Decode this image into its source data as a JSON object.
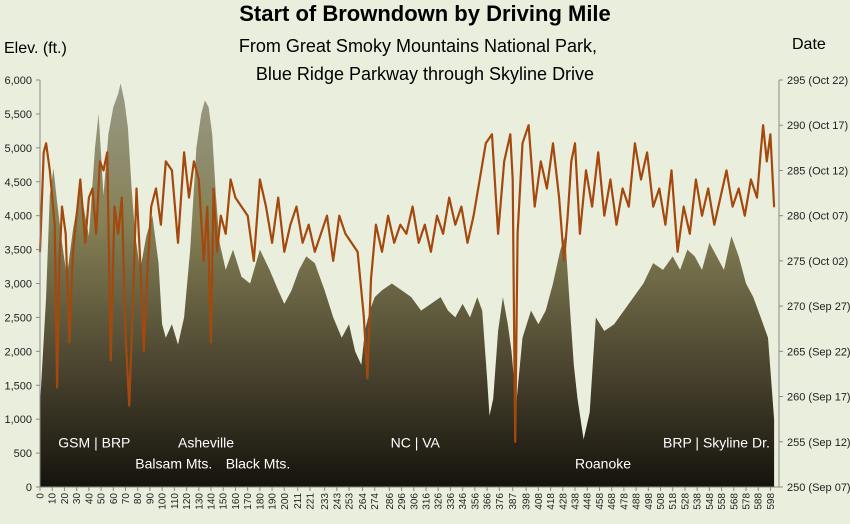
{
  "chart_data": {
    "type": "area",
    "title": "Start of Browndown by Driving Mile",
    "subtitle_lines": [
      "From Great Smoky Mountains National Park,",
      "Blue Ridge Parkway through Skyline Drive"
    ],
    "ylabel": "Elev. (ft.)",
    "y2label": "Date",
    "ylim": [
      0,
      6000
    ],
    "yticks": [
      0,
      500,
      1000,
      1500,
      2000,
      2500,
      3000,
      3500,
      4000,
      4500,
      5000,
      5500,
      6000
    ],
    "yticklabels": [
      "0",
      "500",
      "1,000",
      "1,500",
      "2,000",
      "2,500",
      "3,000",
      "3,500",
      "4,000",
      "4,500",
      "5,000",
      "5,500",
      "6,000"
    ],
    "y2lim": [
      250,
      295
    ],
    "y2ticks": [
      250,
      255,
      260,
      265,
      270,
      275,
      280,
      285,
      290,
      295
    ],
    "y2ticklabels": [
      "250 (Sep 07)",
      "255 (Sep 12)",
      "260 (Sep 17)",
      "265 (Sep 22)",
      "270 (Sep 27)",
      "275 (Oct 02)",
      "280 (Oct 07)",
      "285 (Oct 12)",
      "290 (Oct 17)",
      "295 (Oct 22)"
    ],
    "xlim": [
      0,
      605
    ],
    "xticks": [
      0,
      10,
      20,
      30,
      40,
      50,
      60,
      70,
      80,
      90,
      100,
      110,
      120,
      130,
      140,
      150,
      160,
      170,
      180,
      190,
      200,
      211,
      221,
      233,
      243,
      253,
      264,
      274,
      286,
      296,
      306,
      316,
      326,
      336,
      346,
      356,
      366,
      376,
      387,
      398,
      408,
      418,
      428,
      438,
      448,
      458,
      468,
      478,
      488,
      498,
      508,
      518,
      528,
      538,
      548,
      558,
      568,
      578,
      588,
      598
    ],
    "grid": false,
    "legend": "none",
    "series": [
      {
        "kind": "area",
        "axis": "left",
        "x": [
          0,
          5,
          8,
          11,
          14,
          18,
          22,
          27,
          33,
          40,
          45,
          48,
          52,
          56,
          60,
          64,
          66,
          69,
          72,
          75,
          78,
          82,
          87,
          92,
          97,
          100,
          103,
          108,
          113,
          118,
          123,
          128,
          132,
          135,
          138,
          141,
          144,
          147,
          152,
          158,
          165,
          172,
          180,
          188,
          195,
          200,
          206,
          212,
          218,
          225,
          233,
          240,
          247,
          253,
          258,
          263,
          266,
          270,
          274,
          280,
          288,
          296,
          304,
          312,
          320,
          328,
          334,
          340,
          346,
          352,
          358,
          362,
          366,
          368,
          371,
          375,
          379,
          383,
          386,
          388,
          390,
          395,
          402,
          408,
          414,
          420,
          426,
          430,
          434,
          437,
          440,
          445,
          450,
          455,
          462,
          470,
          478,
          486,
          494,
          502,
          510,
          518,
          524,
          530,
          536,
          542,
          548,
          554,
          560,
          566,
          572,
          578,
          584,
          590,
          596,
          601
        ],
        "values": [
          1200,
          2800,
          4300,
          4700,
          4200,
          3600,
          3100,
          3800,
          4400,
          3700,
          5000,
          5500,
          4300,
          5200,
          5600,
          5800,
          5950,
          5700,
          5300,
          4400,
          3700,
          3200,
          3700,
          4000,
          3300,
          2400,
          2200,
          2400,
          2100,
          2500,
          3500,
          5000,
          5500,
          5700,
          5600,
          5200,
          4300,
          3600,
          3200,
          3500,
          3100,
          3000,
          3500,
          3200,
          2900,
          2700,
          2900,
          3200,
          3400,
          3300,
          2900,
          2500,
          2200,
          2400,
          2000,
          1800,
          2300,
          2600,
          2800,
          2900,
          3000,
          2900,
          2800,
          2600,
          2700,
          2800,
          2600,
          2500,
          2700,
          2500,
          2800,
          2600,
          1600,
          1050,
          1300,
          2300,
          2800,
          2400,
          2000,
          1600,
          1250,
          2200,
          2600,
          2400,
          2600,
          3000,
          3500,
          3700,
          2600,
          1800,
          1300,
          700,
          1100,
          2500,
          2300,
          2400,
          2600,
          2800,
          3000,
          3300,
          3200,
          3400,
          3200,
          3500,
          3400,
          3200,
          3600,
          3400,
          3200,
          3700,
          3400,
          3000,
          2800,
          2500,
          2200,
          1000
        ]
      },
      {
        "kind": "line",
        "axis": "right",
        "color": "#a4490e",
        "x": [
          0,
          3,
          5,
          8,
          12,
          14,
          16,
          18,
          21,
          24,
          27,
          30,
          33,
          37,
          40,
          43,
          46,
          49,
          52,
          55,
          58,
          61,
          64,
          67,
          70,
          73,
          76,
          79,
          82,
          85,
          88,
          91,
          95,
          99,
          103,
          108,
          113,
          118,
          122,
          126,
          130,
          134,
          137,
          140,
          142,
          145,
          148,
          152,
          156,
          160,
          165,
          170,
          175,
          180,
          185,
          190,
          195,
          200,
          205,
          210,
          215,
          220,
          225,
          230,
          235,
          240,
          245,
          250,
          255,
          260,
          265,
          268,
          271,
          275,
          280,
          285,
          290,
          295,
          300,
          305,
          310,
          315,
          320,
          325,
          330,
          335,
          340,
          345,
          350,
          355,
          360,
          365,
          370,
          375,
          380,
          385,
          387,
          389,
          391,
          395,
          400,
          405,
          410,
          415,
          420,
          425,
          429,
          432,
          435,
          438,
          442,
          447,
          452,
          457,
          462,
          467,
          472,
          477,
          482,
          487,
          492,
          497,
          502,
          507,
          512,
          517,
          522,
          527,
          532,
          537,
          542,
          547,
          552,
          557,
          562,
          567,
          572,
          577,
          582,
          587,
          590,
          592,
          595,
          598,
          601
        ],
        "values": [
          276,
          287,
          288,
          285,
          279,
          261,
          275,
          281,
          278,
          266,
          276,
          280,
          284,
          277,
          282,
          283,
          278,
          286,
          285,
          287,
          264,
          281,
          278,
          282,
          267,
          259,
          270,
          283,
          275,
          265,
          274,
          281,
          283,
          279,
          286,
          285,
          277,
          287,
          282,
          286,
          284,
          275,
          281,
          266,
          283,
          276,
          280,
          278,
          284,
          282,
          281,
          280,
          275,
          284,
          281,
          277,
          282,
          276,
          279,
          281,
          277,
          279,
          276,
          278,
          280,
          275,
          280,
          278,
          277,
          276,
          269,
          262,
          273,
          279,
          276,
          280,
          277,
          279,
          278,
          281,
          277,
          279,
          276,
          280,
          278,
          282,
          279,
          281,
          277,
          280,
          284,
          288,
          289,
          278,
          286,
          289,
          284,
          255,
          278,
          288,
          290,
          281,
          286,
          283,
          288,
          282,
          275,
          280,
          286,
          288,
          278,
          285,
          281,
          287,
          280,
          284,
          279,
          283,
          281,
          288,
          284,
          287,
          281,
          283,
          279,
          285,
          276,
          281,
          278,
          284,
          280,
          283,
          279,
          282,
          285,
          281,
          283,
          280,
          284,
          282,
          287,
          290,
          286,
          289,
          281
        ]
      }
    ],
    "annotations": [
      {
        "text": "GSM | BRP",
        "x": 15,
        "y": 580
      },
      {
        "text": "Balsam Mts.",
        "x": 78,
        "y": 270
      },
      {
        "text": "Asheville",
        "x": 113,
        "y": 580
      },
      {
        "text": "Black Mts.",
        "x": 152,
        "y": 270
      },
      {
        "text": "NC | VA",
        "x": 287,
        "y": 580
      },
      {
        "text": "Roanoke",
        "x": 438,
        "y": 270
      },
      {
        "text": "BRP | Skyline Dr.",
        "x": 510,
        "y": 580
      }
    ]
  }
}
